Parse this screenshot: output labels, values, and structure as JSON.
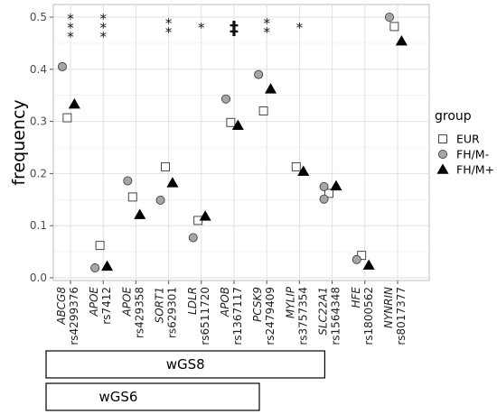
{
  "chart_data": {
    "type": "scatter",
    "ylabel": "frequency",
    "ylim": [
      0,
      0.52
    ],
    "yticks": [
      0.0,
      0.1,
      0.2,
      0.3,
      0.4,
      0.5
    ],
    "ytick_labels": [
      "0.0",
      "0.1",
      "0.2",
      "0.3",
      "0.4",
      "0.5"
    ],
    "grid": true,
    "legend": {
      "title": "group",
      "position": "right"
    },
    "categories": [
      {
        "gene": "ABCG8",
        "snp": "rs4299376",
        "sig": "***"
      },
      {
        "gene": "APOE",
        "snp": "rs7412",
        "sig": "***"
      },
      {
        "gene": "APOE",
        "snp": "rs429358",
        "sig": ""
      },
      {
        "gene": "SORT1",
        "snp": "rs629301",
        "sig": "**"
      },
      {
        "gene": "LDLR",
        "snp": "rs6511720",
        "sig": "*"
      },
      {
        "gene": "APOB",
        "snp": "rs1367117",
        "sig": "‡"
      },
      {
        "gene": "PCSK9",
        "snp": "rs2479409",
        "sig": "**"
      },
      {
        "gene": "MYLIP",
        "snp": "rs3757354",
        "sig": "*"
      },
      {
        "gene": "SLC22A1",
        "snp": "rs1564348",
        "sig": ""
      },
      {
        "gene": "HFE",
        "snp": "rs1800562",
        "sig": ""
      },
      {
        "gene": "NYNRIN",
        "snp": "rs8017377",
        "sig": ""
      }
    ],
    "series": [
      {
        "name": "EUR",
        "marker": "square",
        "color": "#ffffff",
        "stroke": "#333333",
        "values": [
          0.307,
          0.062,
          0.155,
          0.213,
          0.11,
          0.298,
          0.32,
          0.213,
          0.162,
          0.043,
          0.482
        ]
      },
      {
        "name": "FH/M-",
        "marker": "circle",
        "color": "#a6a6a6",
        "stroke": "#333333",
        "values": [
          0.405,
          0.019,
          0.186,
          0.149,
          0.077,
          0.343,
          0.39,
          null,
          0.175,
          0.035,
          0.5
        ]
      },
      {
        "name": "FH/M+",
        "marker": "triangle",
        "color": "#000000",
        "stroke": "#000000",
        "values": [
          0.333,
          0.022,
          0.121,
          0.182,
          0.118,
          0.292,
          0.362,
          0.204,
          0.176,
          0.024,
          0.454
        ]
      }
    ],
    "extra_points": [
      {
        "series": "FH/M-",
        "category_index": 8,
        "value": 0.151
      }
    ],
    "brackets": [
      {
        "label": "wGS8",
        "from_index": 0,
        "to_index": 7
      },
      {
        "label": "wGS6",
        "from_index": 0,
        "to_index": 5
      }
    ]
  }
}
